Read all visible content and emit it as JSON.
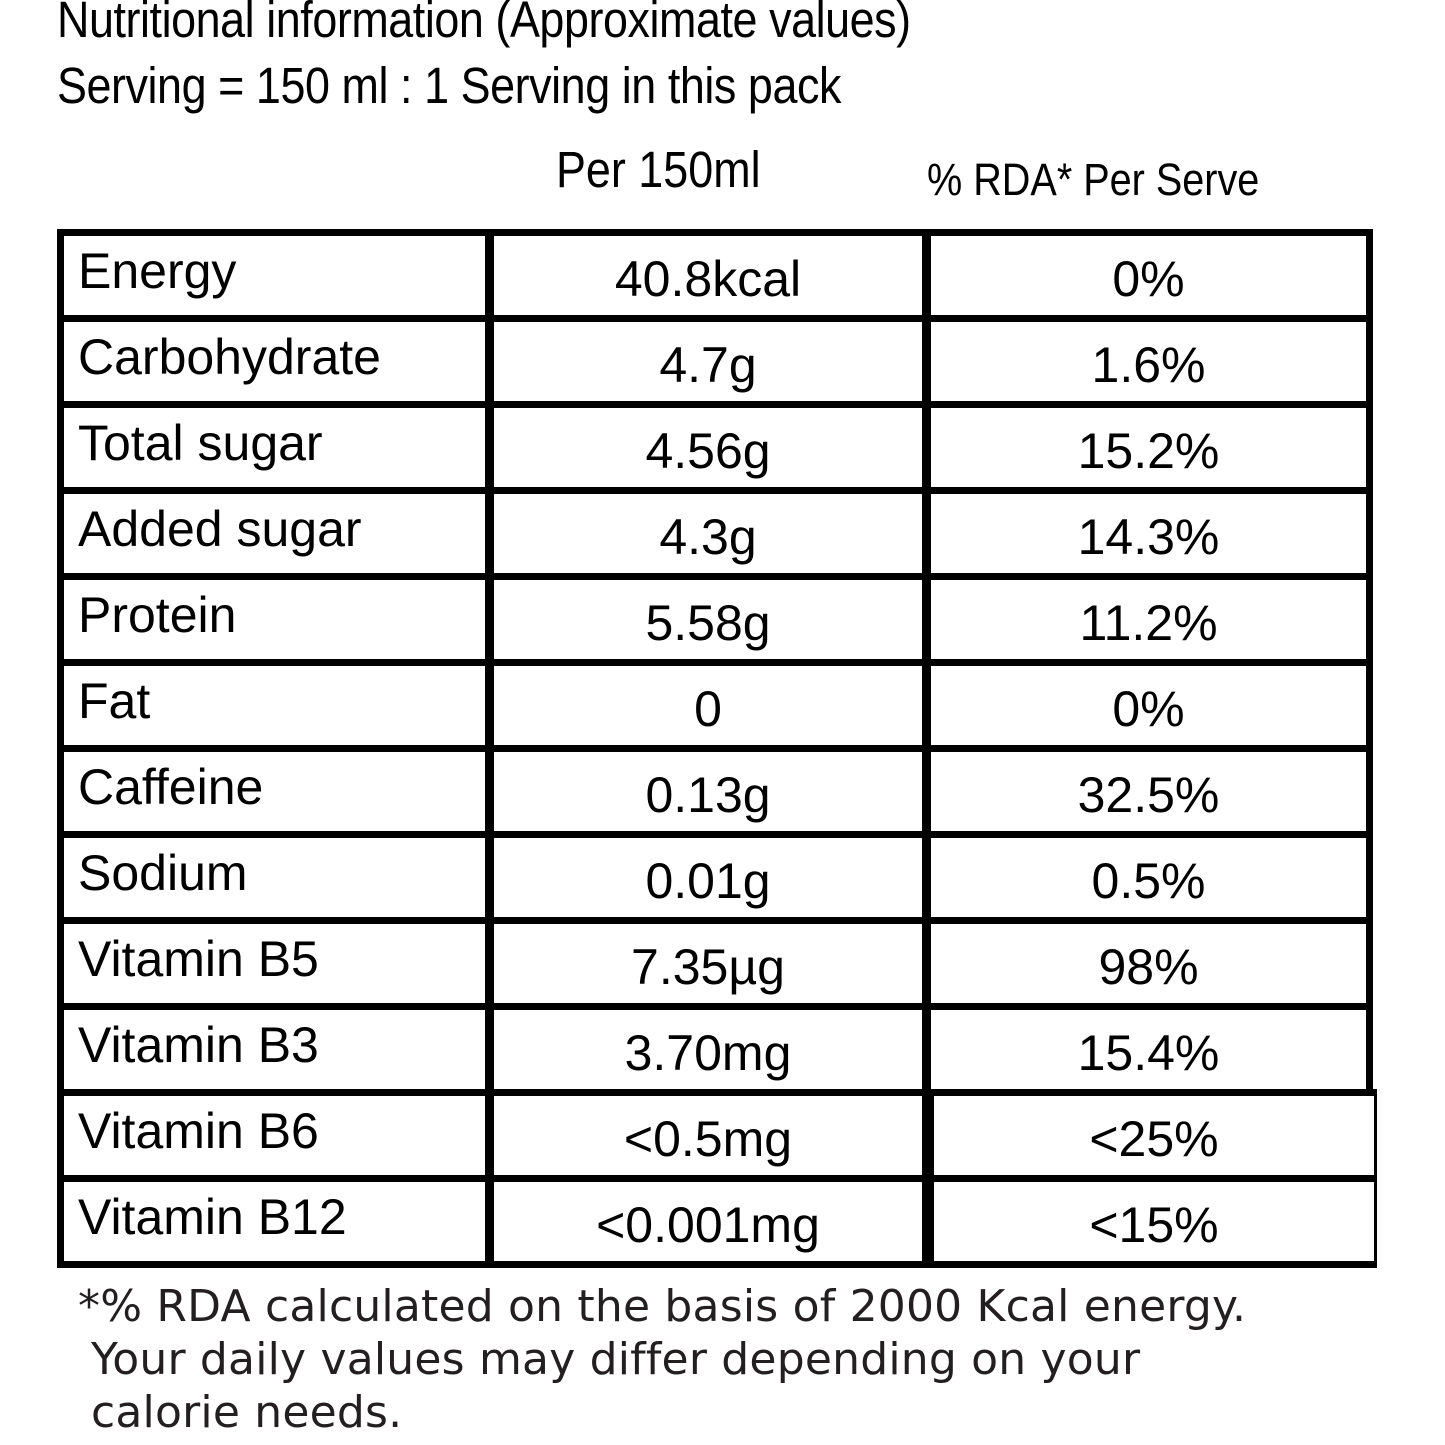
{
  "header": {
    "title": "Nutritional information (Approximate values)",
    "serving": "Serving = 150 ml : 1 Serving in this pack"
  },
  "columns": {
    "per_serving": "Per 150ml",
    "rda": "% RDA* Per Serve"
  },
  "rows": [
    {
      "nutrient": "Energy",
      "amount": "40.8kcal",
      "rda": "0%"
    },
    {
      "nutrient": "Carbohydrate",
      "amount": "4.7g",
      "rda": "1.6%"
    },
    {
      "nutrient": "Total sugar",
      "amount": "4.56g",
      "rda": "15.2%"
    },
    {
      "nutrient": "Added sugar",
      "amount": "4.3g",
      "rda": "14.3%"
    },
    {
      "nutrient": "Protein",
      "amount": "5.58g",
      "rda": "11.2%"
    },
    {
      "nutrient": "Fat",
      "amount": "0",
      "rda": "0%"
    },
    {
      "nutrient": "Caffeine",
      "amount": "0.13g",
      "rda": "32.5%"
    },
    {
      "nutrient": "Sodium",
      "amount": "0.01g",
      "rda": "0.5%"
    },
    {
      "nutrient": "Vitamin B5",
      "amount": "7.35µg",
      "rda": "98%"
    },
    {
      "nutrient": "Vitamin B3",
      "amount": "3.70mg",
      "rda": "15.4%"
    },
    {
      "nutrient": "Vitamin B6",
      "amount": "<0.5mg",
      "rda": "<25%"
    },
    {
      "nutrient": "Vitamin B12",
      "amount": "<0.001mg",
      "rda": "<15%"
    }
  ],
  "footnote": {
    "line1": "*% RDA calculated on the basis of 2000 Kcal energy.",
    "line2": "Your daily values may differ depending on your",
    "line3": "calorie needs."
  }
}
